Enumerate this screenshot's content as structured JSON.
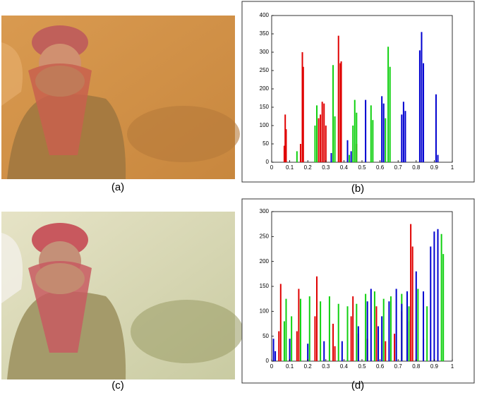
{
  "figure": {
    "captions": [
      "(a)",
      "(b)",
      "(c)",
      "(d)"
    ]
  },
  "chart_data": [
    {
      "type": "spike",
      "xlim": [
        0,
        1
      ],
      "xticks": [
        0,
        0.1,
        0.2,
        0.3,
        0.4,
        0.5,
        0.6,
        0.7,
        0.8,
        0.9,
        1
      ],
      "ylim": [
        0,
        400
      ],
      "yticks": [
        0,
        50,
        100,
        150,
        200,
        250,
        300,
        350,
        400
      ],
      "series": [
        {
          "color": "#e00000",
          "x": [
            0.07,
            0.075,
            0.08,
            0.16,
            0.17,
            0.175,
            0.26,
            0.27,
            0.28,
            0.29,
            0.3,
            0.37,
            0.38,
            0.385,
            0.47
          ],
          "values": [
            45,
            130,
            90,
            50,
            300,
            260,
            120,
            130,
            165,
            160,
            100,
            345,
            270,
            275,
            50
          ]
        },
        {
          "color": "#10d010",
          "x": [
            0.14,
            0.24,
            0.25,
            0.34,
            0.35,
            0.43,
            0.45,
            0.46,
            0.47,
            0.55,
            0.56,
            0.63,
            0.645,
            0.655
          ],
          "values": [
            30,
            100,
            155,
            265,
            125,
            20,
            100,
            170,
            135,
            155,
            115,
            120,
            315,
            260
          ]
        },
        {
          "color": "#0000d0",
          "x": [
            0.33,
            0.42,
            0.44,
            0.52,
            0.61,
            0.62,
            0.72,
            0.73,
            0.74,
            0.82,
            0.83,
            0.84,
            0.91,
            0.92
          ],
          "values": [
            25,
            60,
            30,
            170,
            180,
            160,
            130,
            165,
            140,
            305,
            355,
            270,
            185,
            20
          ]
        }
      ]
    },
    {
      "type": "spike",
      "xlim": [
        0,
        1
      ],
      "xticks": [
        0,
        0.1,
        0.2,
        0.3,
        0.4,
        0.5,
        0.6,
        0.7,
        0.8,
        0.9,
        1
      ],
      "ylim": [
        0,
        300
      ],
      "yticks": [
        0,
        50,
        100,
        150,
        200,
        250,
        300
      ],
      "series": [
        {
          "color": "#e00000",
          "x": [
            0.04,
            0.05,
            0.14,
            0.15,
            0.24,
            0.25,
            0.34,
            0.35,
            0.44,
            0.45,
            0.48,
            0.53,
            0.58,
            0.63,
            0.68,
            0.72,
            0.76,
            0.77,
            0.78,
            0.84
          ],
          "values": [
            60,
            155,
            60,
            145,
            90,
            170,
            75,
            30,
            90,
            130,
            55,
            45,
            110,
            40,
            55,
            100,
            80,
            275,
            230,
            45
          ]
        },
        {
          "color": "#10d010",
          "x": [
            0.07,
            0.08,
            0.11,
            0.16,
            0.21,
            0.27,
            0.32,
            0.37,
            0.42,
            0.47,
            0.52,
            0.57,
            0.62,
            0.66,
            0.72,
            0.76,
            0.81,
            0.86,
            0.94,
            0.95
          ],
          "values": [
            80,
            125,
            90,
            125,
            130,
            120,
            130,
            115,
            110,
            115,
            135,
            140,
            125,
            130,
            135,
            110,
            145,
            110,
            255,
            215
          ]
        },
        {
          "color": "#0000d0",
          "x": [
            0.01,
            0.02,
            0.1,
            0.2,
            0.29,
            0.39,
            0.48,
            0.53,
            0.55,
            0.59,
            0.61,
            0.65,
            0.69,
            0.72,
            0.75,
            0.8,
            0.84,
            0.88,
            0.9,
            0.92
          ],
          "values": [
            45,
            20,
            45,
            35,
            40,
            40,
            70,
            120,
            145,
            70,
            90,
            120,
            145,
            115,
            140,
            180,
            140,
            230,
            260,
            265
          ]
        }
      ]
    }
  ]
}
